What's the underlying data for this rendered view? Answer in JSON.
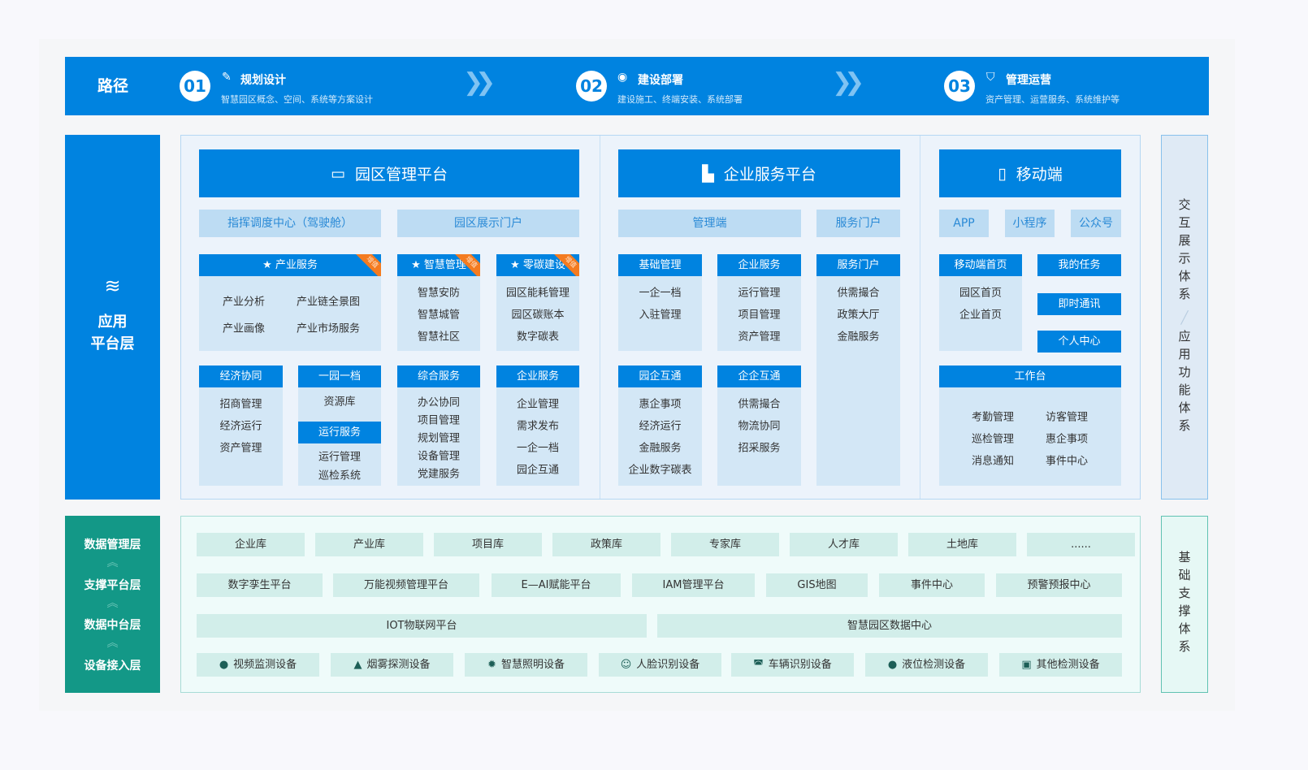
{
  "header": {
    "label": "路径",
    "steps": [
      {
        "num": "01",
        "icon": "edit-icon",
        "title": "规划设计",
        "subtitle": "智慧园区概念、空间、系统等方案设计"
      },
      {
        "num": "02",
        "icon": "signal-icon",
        "title": "建设部署",
        "subtitle": "建设施工、终端安装、系统部署"
      },
      {
        "num": "03",
        "icon": "shield-icon",
        "title": "管理运营",
        "subtitle": "资产管理、运营服务、系统维护等"
      }
    ]
  },
  "app_layer": {
    "line1": "应用",
    "line2": "平台层",
    "icon": "layers-icon"
  },
  "foundation_layers": [
    "数据管理层",
    "支撑平台层",
    "数据中台层",
    "设备接入层"
  ],
  "platforms": [
    {
      "title": "园区管理平台",
      "icon": "monitor-icon",
      "tabs": [
        "指挥调度中心（驾驶舱）",
        "园区展示门户"
      ]
    },
    {
      "title": "企业服务平台",
      "icon": "building-icon",
      "tabs": [
        "管理端",
        "服务门户"
      ]
    },
    {
      "title": "移动端",
      "icon": "phone-icon",
      "tabs": [
        "APP",
        "小程序",
        "公众号"
      ]
    }
  ],
  "cards": [
    {
      "title": "产业服务",
      "starred": true,
      "badge": "增值",
      "items": [
        "产业分析",
        "产业链全景图",
        "产业画像",
        "产业市场服务"
      ]
    },
    {
      "title": "智慧管理",
      "starred": true,
      "badge": "增值",
      "items": [
        "智慧安防",
        "智慧城管",
        "智慧社区"
      ]
    },
    {
      "title": "零碳建设",
      "starred": true,
      "badge": "增值",
      "items": [
        "园区能耗管理",
        "园区碳账本",
        "数字碳表"
      ]
    },
    {
      "title": "基础管理",
      "items": [
        "一企一档",
        "入驻管理"
      ]
    },
    {
      "title": "企业服务",
      "items": [
        "运行管理",
        "项目管理",
        "资产管理"
      ]
    },
    {
      "title": "服务门户",
      "items": [
        "供需撮合",
        "政策大厅",
        "金融服务"
      ]
    },
    {
      "title": "移动端首页",
      "items": [
        "园区首页",
        "企业首页"
      ]
    },
    {
      "title": "我的任务",
      "items": []
    },
    {
      "title": "即时通讯",
      "items": []
    },
    {
      "title": "个人中心",
      "items": []
    },
    {
      "title": "经济协同",
      "items": [
        "招商管理",
        "经济运行",
        "资产管理"
      ]
    },
    {
      "title": "一园一档",
      "items": [
        "资源库"
      ]
    },
    {
      "title": "运行服务",
      "items": [
        "运行管理",
        "巡检系统"
      ]
    },
    {
      "title": "综合服务",
      "items": [
        "办公协同",
        "项目管理",
        "规划管理",
        "设备管理",
        "党建服务"
      ]
    },
    {
      "title": "企业服务",
      "items": [
        "企业管理",
        "需求发布",
        "一企一档",
        "园企互通"
      ]
    },
    {
      "title": "园企互通",
      "items": [
        "惠企事项",
        "经济运行",
        "金融服务",
        "企业数字碳表"
      ]
    },
    {
      "title": "企企互通",
      "items": [
        "供需撮合",
        "物流协同",
        "招采服务"
      ]
    },
    {
      "title": "工作台",
      "items": [
        "考勤管理",
        "访客管理",
        "巡检管理",
        "惠企事项",
        "消息通知",
        "事件中心"
      ]
    }
  ],
  "foundation": {
    "databases": [
      "企业库",
      "产业库",
      "项目库",
      "政策库",
      "专家库",
      "人才库",
      "土地库",
      "......"
    ],
    "platforms": [
      "数字孪生平台",
      "万能视频管理平台",
      "E—AI赋能平台",
      "IAM管理平台",
      "GIS地图",
      "事件中心",
      "预警预报中心"
    ],
    "centers": [
      "IOT物联网平台",
      "智慧园区数据中心"
    ],
    "devices": [
      {
        "label": "视频监测设备",
        "icon": "camera-icon"
      },
      {
        "label": "烟雾探测设备",
        "icon": "smoke-detector-icon"
      },
      {
        "label": "智慧照明设备",
        "icon": "light-icon"
      },
      {
        "label": "人脸识别设备",
        "icon": "face-scan-icon"
      },
      {
        "label": "车辆识别设备",
        "icon": "car-icon"
      },
      {
        "label": "液位检测设备",
        "icon": "drop-icon"
      },
      {
        "label": "其他检测设备",
        "icon": "device-icon"
      }
    ]
  },
  "side": {
    "top_a": "交互展示体系",
    "top_b": "应用功能体系",
    "bottom": "基础支撑体系"
  },
  "colors": {
    "primary": "#0083e0",
    "teal": "#139887",
    "badge": "#f47b20",
    "tab_bg": "#bddcf3",
    "card_bg": "#d3e7f6",
    "foundation_box": "#d2eeea"
  }
}
